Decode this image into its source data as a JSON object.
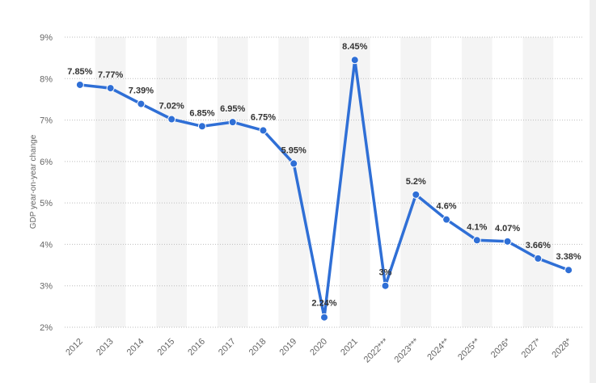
{
  "chart_data": {
    "type": "line",
    "ylabel": "GDP year-on-year change",
    "xlabel": "",
    "title": "",
    "ylim": [
      2,
      9
    ],
    "yticks": [
      "2%",
      "3%",
      "4%",
      "5%",
      "6%",
      "7%",
      "8%",
      "9%"
    ],
    "grid": true,
    "categories": [
      "2012",
      "2013",
      "2014",
      "2015",
      "2016",
      "2017",
      "2018",
      "2019",
      "2020",
      "2021",
      "2022***",
      "2023***",
      "2024**",
      "2025**",
      "2026*",
      "2027*",
      "2028*"
    ],
    "values": [
      7.85,
      7.77,
      7.39,
      7.02,
      6.85,
      6.95,
      6.75,
      5.95,
      2.24,
      8.45,
      3,
      5.2,
      4.6,
      4.1,
      4.07,
      3.66,
      3.38
    ],
    "labels": [
      "7.85%",
      "7.77%",
      "7.39%",
      "7.02%",
      "6.85%",
      "6.95%",
      "6.75%",
      "5.95%",
      "2.24%",
      "8.45%",
      "3%",
      "5.2%",
      "4.6%",
      "4.1%",
      "4.07%",
      "3.66%",
      "3.38%"
    ],
    "series_color": "#2f6fd6"
  }
}
